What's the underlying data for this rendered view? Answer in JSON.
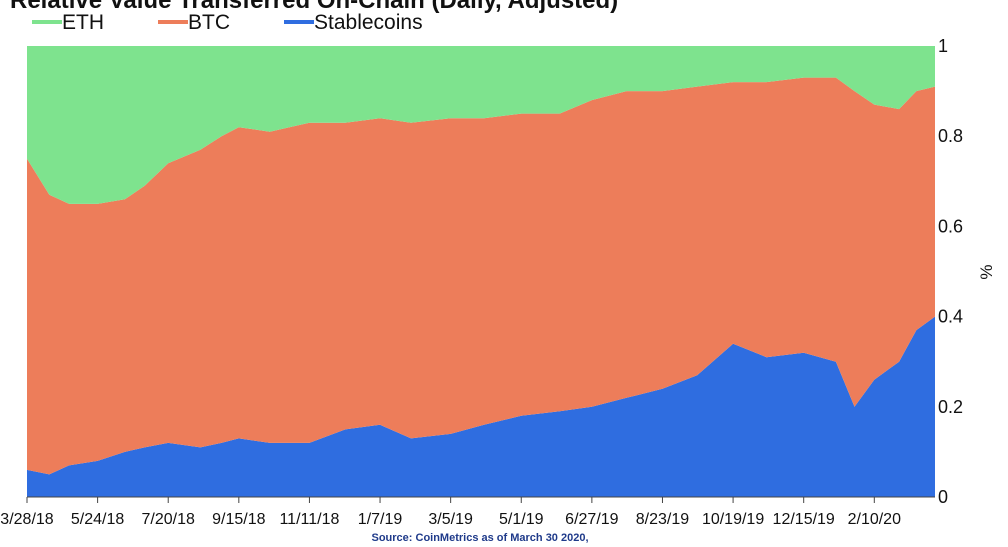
{
  "chart_data": {
    "type": "area",
    "stacking": "stacked-100",
    "title": "Relative Value Transferred On-Chain (Daily, Adjusted)",
    "ylabel": "%",
    "ylim": [
      0,
      1
    ],
    "yticks": [
      "0",
      "0.2",
      "0.4",
      "0.6",
      "0.8",
      "1"
    ],
    "xlim": [
      "2018-03-28",
      "2020-03-30"
    ],
    "xticks": [
      "3/28/18",
      "5/24/18",
      "7/20/18",
      "9/15/18",
      "11/11/18",
      "1/7/19",
      "3/5/19",
      "5/1/19",
      "6/27/19",
      "8/23/19",
      "10/19/19",
      "12/15/19",
      "2/10/20"
    ],
    "legend_position": "top-left",
    "grid": false,
    "source": "Source: CoinMetrics as of March 30 2020,",
    "x": [
      "2018-03-28",
      "2018-04-15",
      "2018-05-01",
      "2018-05-24",
      "2018-06-15",
      "2018-07-01",
      "2018-07-20",
      "2018-08-15",
      "2018-09-01",
      "2018-09-15",
      "2018-10-10",
      "2018-11-11",
      "2018-12-10",
      "2019-01-07",
      "2019-02-01",
      "2019-03-05",
      "2019-04-01",
      "2019-05-01",
      "2019-06-01",
      "2019-06-27",
      "2019-07-25",
      "2019-08-23",
      "2019-09-20",
      "2019-10-19",
      "2019-11-15",
      "2019-12-15",
      "2020-01-10",
      "2020-01-25",
      "2020-02-10",
      "2020-03-01",
      "2020-03-15",
      "2020-03-30"
    ],
    "series": [
      {
        "name": "Stablecoins",
        "color": "#2f6de0",
        "values": [
          0.06,
          0.05,
          0.07,
          0.08,
          0.1,
          0.11,
          0.12,
          0.11,
          0.12,
          0.13,
          0.12,
          0.12,
          0.15,
          0.16,
          0.13,
          0.14,
          0.16,
          0.18,
          0.19,
          0.2,
          0.22,
          0.24,
          0.27,
          0.34,
          0.31,
          0.32,
          0.3,
          0.2,
          0.26,
          0.3,
          0.37,
          0.4
        ]
      },
      {
        "name": "BTC",
        "color": "#ed7d5a",
        "values": [
          0.69,
          0.62,
          0.58,
          0.57,
          0.56,
          0.58,
          0.62,
          0.66,
          0.68,
          0.69,
          0.69,
          0.71,
          0.68,
          0.68,
          0.7,
          0.7,
          0.68,
          0.67,
          0.66,
          0.68,
          0.68,
          0.66,
          0.64,
          0.58,
          0.61,
          0.61,
          0.63,
          0.7,
          0.61,
          0.56,
          0.53,
          0.51
        ]
      },
      {
        "name": "ETH",
        "color": "#7ee38e",
        "values": [
          0.25,
          0.33,
          0.35,
          0.35,
          0.34,
          0.31,
          0.26,
          0.23,
          0.2,
          0.18,
          0.19,
          0.17,
          0.17,
          0.16,
          0.17,
          0.16,
          0.16,
          0.15,
          0.15,
          0.12,
          0.1,
          0.1,
          0.09,
          0.08,
          0.08,
          0.07,
          0.07,
          0.1,
          0.13,
          0.14,
          0.1,
          0.09
        ]
      }
    ]
  }
}
